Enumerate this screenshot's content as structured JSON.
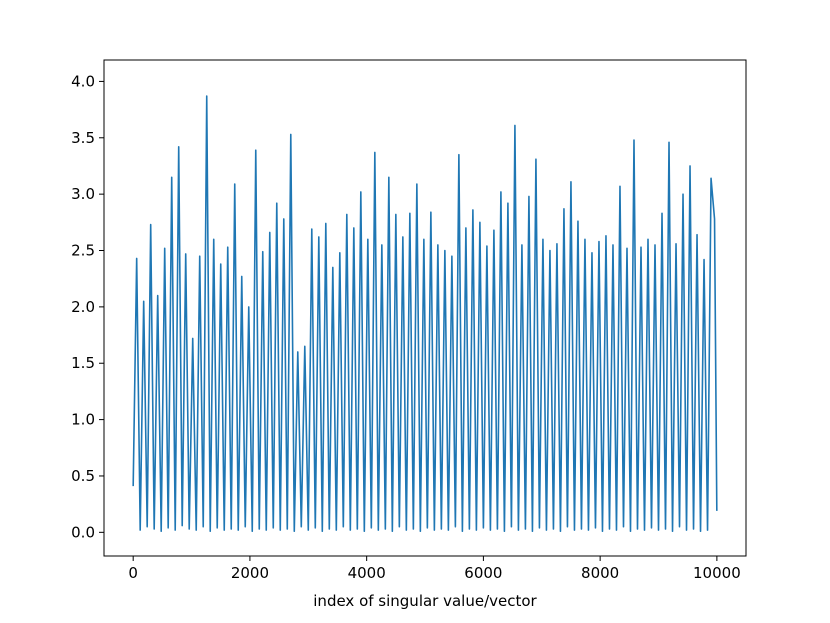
{
  "chart_data": {
    "type": "line",
    "x_label": "index of singular value/vector",
    "color": "#1f77b4",
    "xlim": [
      -499.95,
      10498.95
    ],
    "ylim": [
      -0.21,
      4.19
    ],
    "xticks": [
      0,
      2000,
      4000,
      6000,
      8000,
      10000
    ],
    "yticks": [
      {
        "value": 0,
        "label": "0.0"
      },
      0.5,
      {
        "value": 1,
        "label": "1.0"
      },
      1.5,
      {
        "value": 2,
        "label": "2.0"
      },
      2.5,
      {
        "value": 3,
        "label": "3.0"
      },
      3.5,
      {
        "value": 4,
        "label": "4.0"
      }
    ],
    "x": [
      0,
      60,
      120,
      180,
      240,
      300,
      360,
      420,
      480,
      540,
      600,
      660,
      720,
      780,
      840,
      900,
      960,
      1020,
      1080,
      1140,
      1200,
      1260,
      1320,
      1380,
      1440,
      1500,
      1560,
      1620,
      1680,
      1740,
      1800,
      1860,
      1920,
      1980,
      2040,
      2100,
      2160,
      2220,
      2280,
      2340,
      2400,
      2460,
      2520,
      2580,
      2640,
      2700,
      2760,
      2820,
      2880,
      2940,
      3000,
      3060,
      3120,
      3180,
      3240,
      3300,
      3360,
      3420,
      3480,
      3540,
      3600,
      3660,
      3720,
      3780,
      3840,
      3900,
      3960,
      4020,
      4080,
      4140,
      4200,
      4260,
      4320,
      4380,
      4440,
      4500,
      4560,
      4620,
      4680,
      4740,
      4800,
      4860,
      4920,
      4980,
      5040,
      5100,
      5160,
      5220,
      5280,
      5340,
      5400,
      5460,
      5520,
      5580,
      5640,
      5700,
      5760,
      5820,
      5880,
      5940,
      6000,
      6060,
      6120,
      6180,
      6240,
      6300,
      6360,
      6420,
      6480,
      6540,
      6600,
      6660,
      6720,
      6780,
      6840,
      6900,
      6960,
      7020,
      7080,
      7140,
      7200,
      7260,
      7320,
      7380,
      7440,
      7500,
      7560,
      7620,
      7680,
      7740,
      7800,
      7860,
      7920,
      7980,
      8040,
      8100,
      8160,
      8220,
      8280,
      8340,
      8400,
      8460,
      8520,
      8580,
      8640,
      8700,
      8760,
      8820,
      8880,
      8940,
      9000,
      9060,
      9120,
      9180,
      9240,
      9300,
      9360,
      9420,
      9480,
      9540,
      9600,
      9660,
      9720,
      9780,
      9840,
      9900,
      9960,
      9999
    ],
    "values": [
      0.41,
      2.43,
      0.02,
      2.05,
      0.05,
      2.73,
      0.03,
      2.1,
      0.01,
      2.52,
      0.04,
      3.15,
      0.02,
      3.42,
      0.06,
      2.47,
      0.03,
      1.72,
      0.02,
      2.45,
      0.05,
      3.87,
      0.01,
      2.6,
      0.04,
      2.38,
      0.02,
      2.53,
      0.03,
      3.09,
      0.02,
      2.27,
      0.05,
      2.0,
      0.01,
      3.39,
      0.03,
      2.49,
      0.02,
      2.66,
      0.04,
      2.92,
      0.02,
      2.78,
      0.03,
      3.53,
      0.01,
      1.6,
      0.05,
      1.65,
      0.02,
      2.69,
      0.04,
      2.62,
      0.01,
      2.74,
      0.03,
      2.35,
      0.02,
      2.48,
      0.05,
      2.82,
      0.02,
      2.7,
      0.03,
      3.02,
      0.01,
      2.6,
      0.04,
      3.37,
      0.02,
      2.55,
      0.03,
      3.15,
      0.01,
      2.82,
      0.05,
      2.62,
      0.02,
      2.83,
      0.03,
      3.09,
      0.01,
      2.6,
      0.04,
      2.84,
      0.02,
      2.55,
      0.03,
      2.5,
      0.02,
      2.45,
      0.05,
      3.35,
      0.01,
      2.7,
      0.03,
      2.86,
      0.02,
      2.75,
      0.04,
      2.54,
      0.02,
      2.68,
      0.03,
      3.02,
      0.01,
      2.92,
      0.05,
      3.61,
      0.02,
      2.55,
      0.03,
      2.98,
      0.01,
      3.31,
      0.04,
      2.6,
      0.02,
      2.5,
      0.03,
      2.56,
      0.01,
      2.87,
      0.05,
      3.11,
      0.02,
      2.76,
      0.03,
      2.6,
      0.02,
      2.48,
      0.04,
      2.58,
      0.01,
      2.63,
      0.03,
      2.55,
      0.02,
      3.07,
      0.05,
      2.52,
      0.01,
      3.48,
      0.03,
      2.53,
      0.02,
      2.6,
      0.04,
      2.55,
      0.02,
      2.83,
      0.03,
      3.46,
      0.01,
      2.56,
      0.05,
      3.0,
      0.02,
      3.25,
      0.03,
      2.64,
      0.01,
      2.42,
      0.02,
      3.14,
      2.78,
      0.19
    ]
  }
}
